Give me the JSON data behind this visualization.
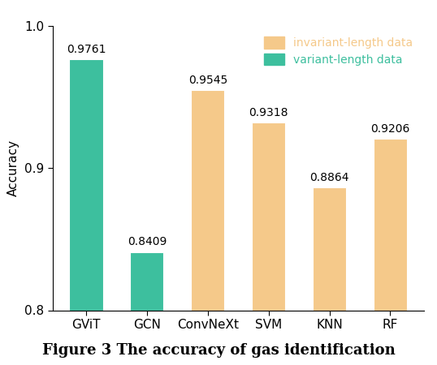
{
  "categories": [
    "GViT",
    "GCN",
    "ConvNeXt",
    "SVM",
    "KNN",
    "RF"
  ],
  "values": [
    0.9761,
    0.8409,
    0.9545,
    0.9318,
    0.8864,
    0.9206
  ],
  "colors": [
    "#3dbf9e",
    "#3dbf9e",
    "#f5c98a",
    "#f5c98a",
    "#f5c98a",
    "#f5c98a"
  ],
  "bar_edge_color": "#ffffff",
  "ylim": [
    0.8,
    1.0
  ],
  "yticks": [
    0.8,
    0.9,
    1.0
  ],
  "ylabel": "Accuracy",
  "legend_labels": [
    "invariant-length data",
    "variant-length data"
  ],
  "legend_colors": [
    "#f5c98a",
    "#3dbf9e"
  ],
  "legend_text_colors": [
    "#f5c98a",
    "#3dbf9e"
  ],
  "value_labels": [
    "0.9761",
    "0.8409",
    "0.9545",
    "0.9318",
    "0.8864",
    "0.9206"
  ],
  "title": "Figure 3 The accuracy of gas identification",
  "title_fontsize": 13,
  "label_fontsize": 11,
  "tick_fontsize": 11,
  "annotation_fontsize": 10,
  "legend_fontsize": 10,
  "bar_width": 0.55
}
